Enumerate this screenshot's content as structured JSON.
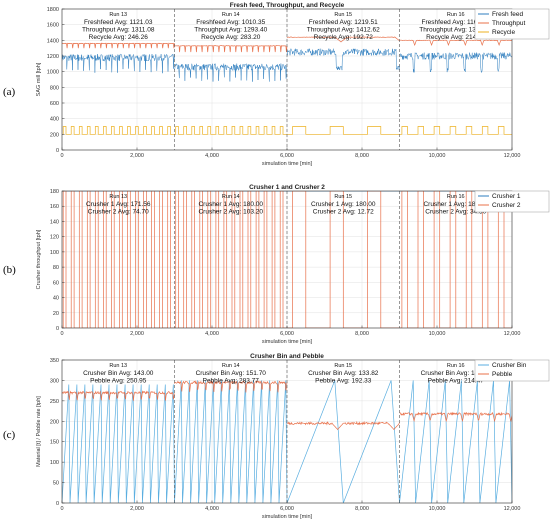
{
  "chart_data": [
    {
      "panel_label": "(a)",
      "type": "line",
      "title": "Fresh feed, Throughput, and Recycle",
      "xlabel": "simulation time [min]",
      "ylabel": "SAG mill [tph]",
      "xlim": [
        0,
        12000
      ],
      "ylim": [
        0,
        1800
      ],
      "xticks": [
        0,
        2000,
        4000,
        6000,
        8000,
        10000,
        12000
      ],
      "xtick_labels": [
        "0",
        "2,000",
        "4,000",
        "6,000",
        "8,000",
        "10,000",
        "12,000"
      ],
      "yticks": [
        0,
        200,
        400,
        600,
        800,
        1000,
        1200,
        1400,
        1600,
        1800
      ],
      "ytick_labels": [
        "0",
        "200",
        "400",
        "600",
        "800",
        "1000",
        "1200",
        "1400",
        "1600",
        "1800"
      ],
      "grid": true,
      "legend_position": "top-right",
      "run_boundaries": [
        3000,
        6000,
        9000
      ],
      "runs": [
        {
          "label": "Run 13",
          "stats": [
            "Freshfeed Avg:  1121.03",
            "Throughput Avg:  1311.08",
            "Recycle Avg:  246.26"
          ]
        },
        {
          "label": "Run 14",
          "stats": [
            "Freshfeed Avg:  1010.35",
            "Throughput Avg:  1293.40",
            "Recycle Avg:  283.20"
          ]
        },
        {
          "label": "Run 15",
          "stats": [
            "Freshfeed Avg:  1219.51",
            "Throughput Avg:  1412.62",
            "Recycle Avg:  192.72"
          ]
        },
        {
          "label": "Run 16",
          "stats": [
            "Freshfeed Avg:  1163.04",
            "Throughput Avg:  1377.49",
            "Recycle Avg:  214.50"
          ]
        }
      ],
      "series": [
        {
          "name": "Fresh feed",
          "color": "#2e7ebf",
          "style": "noisy",
          "segments": [
            {
              "x": [
                0,
                3000
              ],
              "base": 1180,
              "dip": 1010,
              "dip_period": 150
            },
            {
              "x": [
                3000,
                6000
              ],
              "base": 1060,
              "dip": 900,
              "dip_period": 150
            },
            {
              "x": [
                6000,
                9000
              ],
              "base": 1250,
              "dip": 1050,
              "dip_period": 1600
            },
            {
              "x": [
                9000,
                12000
              ],
              "base": 1200,
              "dip": 1020,
              "dip_period": 450
            }
          ]
        },
        {
          "name": "Throughput",
          "color": "#e8704a",
          "style": "wave",
          "segments": [
            {
              "x": [
                0,
                3000
              ],
              "base": 1360,
              "dip": 1300,
              "dip_period": 150
            },
            {
              "x": [
                3000,
                6000
              ],
              "base": 1330,
              "dip": 1250,
              "dip_period": 150
            },
            {
              "x": [
                6000,
                9000
              ],
              "base": 1440,
              "dip": 1380,
              "dip_period": 1600
            },
            {
              "x": [
                9000,
                12000
              ],
              "base": 1400,
              "dip": 1340,
              "dip_period": 450
            }
          ]
        },
        {
          "name": "Recycle",
          "color": "#edb120",
          "style": "square",
          "segments": [
            {
              "x": [
                0,
                3000
              ],
              "low": 200,
              "high": 300,
              "pulses": 14
            },
            {
              "x": [
                3000,
                6000
              ],
              "low": 200,
              "high": 300,
              "pulses": 14
            },
            {
              "x": [
                6000,
                9000
              ],
              "low": 200,
              "high": 300,
              "pulses": 3
            },
            {
              "x": [
                9000,
                12000
              ],
              "low": 200,
              "high": 300,
              "pulses": 7
            }
          ]
        }
      ]
    },
    {
      "panel_label": "(b)",
      "type": "line",
      "title": "Crusher 1 and Crusher 2",
      "xlabel": "simulation time [min]",
      "ylabel": "Crusher throughput [tph]",
      "xlim": [
        0,
        12000
      ],
      "ylim": [
        0,
        180
      ],
      "xticks": [
        0,
        2000,
        4000,
        6000,
        8000,
        10000,
        12000
      ],
      "xtick_labels": [
        "0",
        "2,000",
        "4,000",
        "6,000",
        "8,000",
        "10,000",
        "12,000"
      ],
      "yticks": [
        0,
        20,
        40,
        60,
        80,
        100,
        120,
        140,
        160,
        180
      ],
      "ytick_labels": [
        "0",
        "20",
        "40",
        "60",
        "80",
        "100",
        "120",
        "140",
        "160",
        "180"
      ],
      "grid": true,
      "legend_position": "top-right",
      "run_boundaries": [
        3000,
        6000,
        9000
      ],
      "runs": [
        {
          "label": "Run 13",
          "stats": [
            "Crusher 1 Avg:  171.56",
            "Crusher 2 Avg:  74.70"
          ]
        },
        {
          "label": "Run 14",
          "stats": [
            "Crusher 1 Avg:  180.00",
            "Crusher 2 Avg:  103.20"
          ]
        },
        {
          "label": "Run 15",
          "stats": [
            "Crusher 1 Avg:  180.00",
            "Crusher 2 Avg:  12.72"
          ]
        },
        {
          "label": "Run 16",
          "stats": [
            "Crusher 1 Avg:  180.00",
            "Crusher 2 Avg:  34.50"
          ]
        }
      ],
      "series": [
        {
          "name": "Crusher 1",
          "color": "#2e7ebf",
          "style": "constant",
          "segments": [
            {
              "x": [
                0,
                3000
              ],
              "value": 180
            },
            {
              "x": [
                3000,
                6000
              ],
              "value": 180
            },
            {
              "x": [
                6000,
                9000
              ],
              "value": 180
            },
            {
              "x": [
                9000,
                12000
              ],
              "value": 180
            }
          ]
        },
        {
          "name": "Crusher 2",
          "color": "#e8704a",
          "style": "pulses",
          "segments": [
            {
              "x": [
                0,
                3000
              ],
              "low": 0,
              "high": 180,
              "pulses": 14
            },
            {
              "x": [
                3000,
                6000
              ],
              "low": 0,
              "high": 180,
              "pulses": 14
            },
            {
              "x": [
                6000,
                9000
              ],
              "low": 0,
              "high": 180,
              "pulses": 3
            },
            {
              "x": [
                9000,
                12000
              ],
              "low": 0,
              "high": 180,
              "pulses": 7
            }
          ]
        }
      ]
    },
    {
      "panel_label": "(c)",
      "type": "line",
      "title": "Crusher Bin and Pebble",
      "xlabel": "simulation time [min]",
      "ylabel": "Material [t] / Pebble rate [tph]",
      "xlim": [
        0,
        12000
      ],
      "ylim": [
        0,
        350
      ],
      "xticks": [
        0,
        2000,
        4000,
        6000,
        8000,
        10000,
        12000
      ],
      "xtick_labels": [
        "0",
        "2,000",
        "4,000",
        "6,000",
        "8,000",
        "10,000",
        "12,000"
      ],
      "yticks": [
        0,
        50,
        100,
        150,
        200,
        250,
        300,
        350
      ],
      "ytick_labels": [
        "0",
        "50",
        "100",
        "150",
        "200",
        "250",
        "300",
        "350"
      ],
      "grid": true,
      "legend_position": "top-right",
      "run_boundaries": [
        3000,
        6000,
        9000
      ],
      "runs": [
        {
          "label": "Run 13",
          "stats": [
            "Crusher Bin Avg:  143.00",
            "Pebble Avg:  250.95"
          ]
        },
        {
          "label": "Run 14",
          "stats": [
            "Crusher Bin Avg:  151.70",
            "Pebble Avg:  283.77"
          ]
        },
        {
          "label": "Run 15",
          "stats": [
            "Crusher Bin Avg:  133.82",
            "Pebble Avg:  192.33"
          ]
        },
        {
          "label": "Run 16",
          "stats": [
            "Crusher Bin Avg:  146.83",
            "Pebble Avg:  214.47"
          ]
        }
      ],
      "series": [
        {
          "name": "Crusher Bin",
          "color": "#5aaee0",
          "style": "sawtooth",
          "segments": [
            {
              "x": [
                0,
                3000
              ],
              "low": 0,
              "high": 290,
              "teeth": 14
            },
            {
              "x": [
                3000,
                6000
              ],
              "low": 0,
              "high": 300,
              "teeth": 14
            },
            {
              "x": [
                6000,
                9000
              ],
              "low": 0,
              "high": 300,
              "teeth": 2
            },
            {
              "x": [
                9000,
                12000
              ],
              "low": 0,
              "high": 300,
              "teeth": 7
            }
          ]
        },
        {
          "name": "Pebble",
          "color": "#e8704a",
          "style": "wave",
          "segments": [
            {
              "x": [
                0,
                3000
              ],
              "base": 270,
              "dip": 250,
              "dip_period": 214
            },
            {
              "x": [
                3000,
                6000
              ],
              "base": 295,
              "dip": 270,
              "dip_period": 214
            },
            {
              "x": [
                6000,
                9000
              ],
              "base": 195,
              "dip": 180,
              "dip_period": 1500
            },
            {
              "x": [
                9000,
                12000
              ],
              "base": 218,
              "dip": 200,
              "dip_period": 430
            }
          ]
        }
      ]
    }
  ]
}
